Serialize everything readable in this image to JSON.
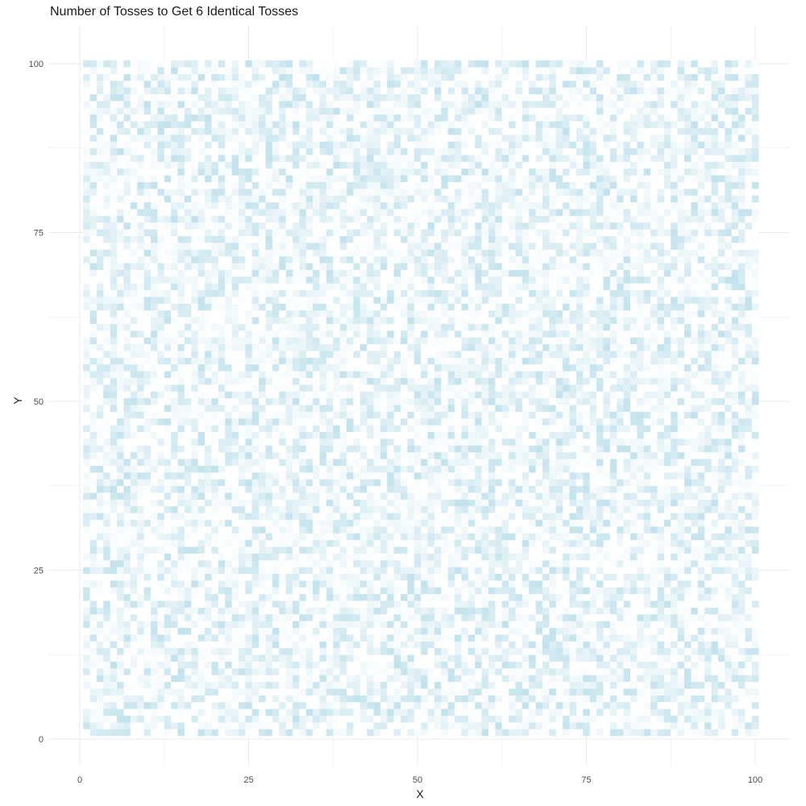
{
  "chart_data": {
    "type": "heatmap",
    "title": "Number of Tosses to Get 6 Identical Tosses",
    "xlabel": "X",
    "ylabel": "Y",
    "xlim": [
      0,
      100
    ],
    "ylim": [
      0,
      100
    ],
    "x_ticks": [
      0,
      25,
      50,
      75,
      100
    ],
    "y_ticks": [
      0,
      25,
      50,
      75,
      100
    ],
    "grid": true,
    "legend": "none",
    "x_range": [
      1,
      100
    ],
    "y_range": [
      1,
      100
    ],
    "color_low": "#ffffff",
    "color_high": "#add8e6",
    "description": ""
  }
}
